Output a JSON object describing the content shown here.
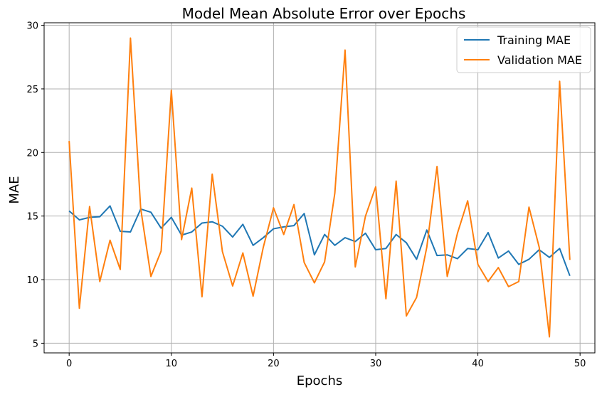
{
  "chart_data": {
    "type": "line",
    "title": "Model Mean Absolute Error over Epochs",
    "xlabel": "Epochs",
    "ylabel": "MAE",
    "xlim": [
      -2.45,
      51.45
    ],
    "ylim": [
      4.24,
      30.2
    ],
    "xticks": [
      0,
      10,
      20,
      30,
      40,
      50
    ],
    "yticks": [
      5,
      10,
      15,
      20,
      25,
      30
    ],
    "grid": true,
    "legend_position": "top-right",
    "x": [
      0,
      1,
      2,
      3,
      4,
      5,
      6,
      7,
      8,
      9,
      10,
      11,
      12,
      13,
      14,
      15,
      16,
      17,
      18,
      19,
      20,
      21,
      22,
      23,
      24,
      25,
      26,
      27,
      28,
      29,
      30,
      31,
      32,
      33,
      34,
      35,
      36,
      37,
      38,
      39,
      40,
      41,
      42,
      43,
      44,
      45,
      46,
      47,
      48,
      49
    ],
    "series": [
      {
        "name": "Training MAE",
        "color": "#1f77b4",
        "values": [
          15.4,
          14.7,
          14.9,
          14.95,
          15.8,
          13.8,
          13.75,
          15.55,
          15.3,
          14.05,
          14.9,
          13.5,
          13.75,
          14.45,
          14.55,
          14.2,
          13.35,
          14.35,
          12.7,
          13.3,
          14.0,
          14.15,
          14.25,
          15.2,
          11.95,
          13.55,
          12.7,
          13.3,
          13.0,
          13.65,
          12.35,
          12.45,
          13.55,
          12.9,
          11.6,
          13.9,
          11.9,
          11.95,
          11.65,
          12.45,
          12.35,
          13.7,
          11.7,
          12.25,
          11.2,
          11.6,
          12.35,
          11.75,
          12.45,
          10.3
        ]
      },
      {
        "name": "Validation MAE",
        "color": "#ff7f0e",
        "values": [
          20.9,
          7.75,
          15.75,
          9.85,
          13.1,
          10.8,
          29.0,
          15.6,
          10.25,
          12.25,
          24.9,
          13.15,
          17.2,
          8.65,
          18.3,
          12.2,
          9.5,
          12.1,
          8.7,
          12.55,
          15.65,
          13.55,
          15.9,
          11.35,
          9.75,
          11.4,
          16.8,
          28.05,
          11.0,
          15.0,
          17.3,
          8.5,
          17.75,
          7.15,
          8.6,
          12.55,
          18.9,
          10.25,
          13.65,
          16.2,
          11.2,
          9.85,
          10.95,
          9.45,
          9.85,
          15.7,
          12.55,
          5.5,
          25.6,
          11.55
        ]
      }
    ]
  }
}
